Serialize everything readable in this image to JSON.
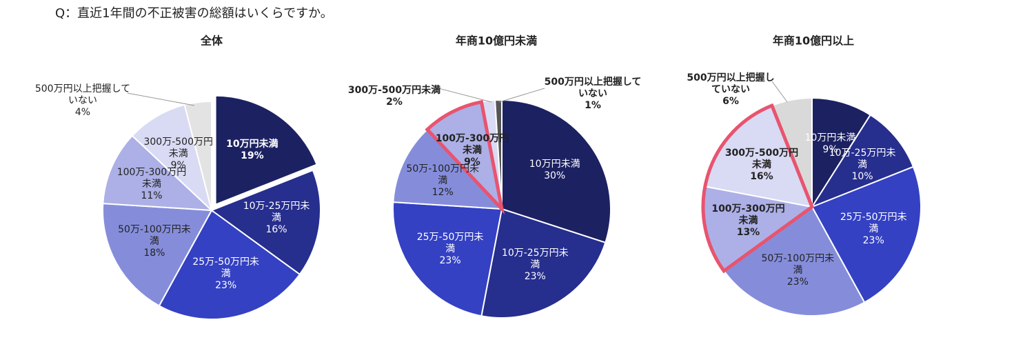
{
  "title": "Q：直近1年間の不正被害の総額はいくらですか。",
  "chart_data": [
    {
      "type": "pie",
      "title": "全体",
      "categories": [
        "10万円未満",
        "10万-25万円未満",
        "25万-50万円未満",
        "50万-100万円未満",
        "100万-300万円未満",
        "300万-500万円未満",
        "500万円以上把握していない"
      ],
      "values": [
        19,
        16,
        23,
        18,
        11,
        9,
        4
      ],
      "value_labels": [
        "19%",
        "16%",
        "23%",
        "18%",
        "11%",
        "9%",
        "4%"
      ],
      "colors": [
        "#1c2161",
        "#262e8e",
        "#3441c3",
        "#858ddb",
        "#acb0e6",
        "#d9daf3",
        "#e3e3e3"
      ],
      "explode": [
        0
      ],
      "highlight": [],
      "bold_labels": [
        0
      ],
      "outside_labels": [
        6
      ]
    },
    {
      "type": "pie",
      "title": "年商10億円未満",
      "categories": [
        "10万円未満",
        "10万-25万円未満",
        "25万-50万円未満",
        "50万-100万円未満",
        "100万-300万円未満",
        "300万-500万円未満",
        "500万円以上把握していない"
      ],
      "values": [
        30,
        23,
        23,
        12,
        9,
        2,
        1
      ],
      "value_labels": [
        "30%",
        "23%",
        "23%",
        "12%",
        "9%",
        "2%",
        "1%"
      ],
      "colors": [
        "#1c2161",
        "#262e8e",
        "#3441c3",
        "#858ddb",
        "#acb0e6",
        "#d9daf3",
        "#555555"
      ],
      "explode": [],
      "highlight": [
        4
      ],
      "bold_labels": [
        4,
        5,
        6
      ],
      "outside_labels": [
        5,
        6
      ]
    },
    {
      "type": "pie",
      "title": "年商10億円以上",
      "categories": [
        "10万円未満",
        "10万-25万円未満",
        "25万-50万円未満",
        "50万-100万円未満",
        "100万-300万円未満",
        "300万-500万円未満",
        "500万円以上把握していない"
      ],
      "values": [
        9,
        10,
        23,
        23,
        13,
        16,
        6
      ],
      "value_labels": [
        "9%",
        "10%",
        "23%",
        "23%",
        "13%",
        "16%",
        "6%"
      ],
      "colors": [
        "#1c2161",
        "#262e8e",
        "#3441c3",
        "#858ddb",
        "#acb0e6",
        "#d9daf3",
        "#d9d9d9"
      ],
      "explode": [],
      "highlight": [
        4,
        5
      ],
      "bold_labels": [
        4,
        5,
        6
      ],
      "outside_labels": [
        6
      ]
    }
  ]
}
